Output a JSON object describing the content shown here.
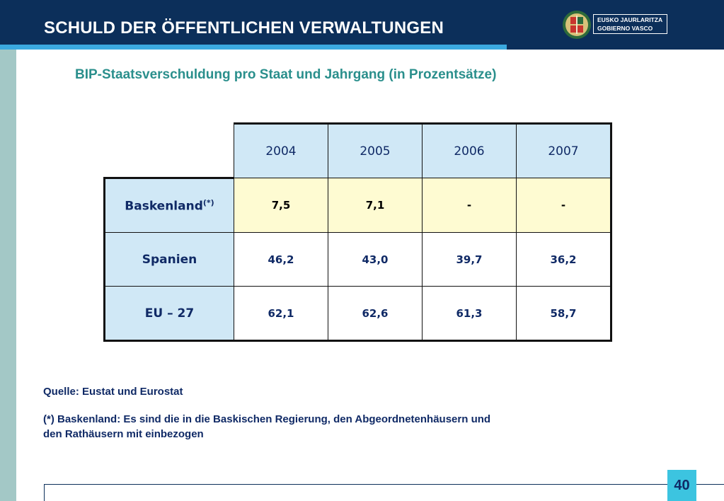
{
  "header": {
    "title": "SCHULD DER ÖFFENTLICHEN VERWALTUNGEN",
    "logo_line1": "EUSKO JAURLARITZA",
    "logo_line2": "GOBIERNO VASCO"
  },
  "subtitle": "BIP-Staatsverschuldung pro Staat und Jahrgang (in Prozentsätze)",
  "table": {
    "years": [
      "2004",
      "2005",
      "2006",
      "2007"
    ],
    "rows": [
      {
        "label": "Baskenland",
        "sup": "(*)",
        "values": [
          "7,5",
          "7,1",
          "-",
          "-"
        ]
      },
      {
        "label": "Spanien",
        "values": [
          "46,2",
          "43,0",
          "39,7",
          "36,2"
        ]
      },
      {
        "label": "EU – 27",
        "values": [
          "62,1",
          "62,6",
          "61,3",
          "58,7"
        ]
      }
    ]
  },
  "source": "Quelle: Eustat und Eurostat",
  "note_line1": "(*) Baskenland: Es sind die in die Baskischen Regierung, den Abgeordnetenhäusern und",
  "note_line2": "den Rathäusern mit einbezogen",
  "page_number": "40",
  "colors": {
    "header_bg": "#0c2f5a",
    "stripe": "#3ba9df",
    "subtitle": "#2a8f8c",
    "header_cell": "#d0e8f6",
    "highlight_row": "#fefbd2",
    "page_badge": "#3cc4e0"
  },
  "icons": {
    "logo": "basque-government-crest-icon"
  }
}
